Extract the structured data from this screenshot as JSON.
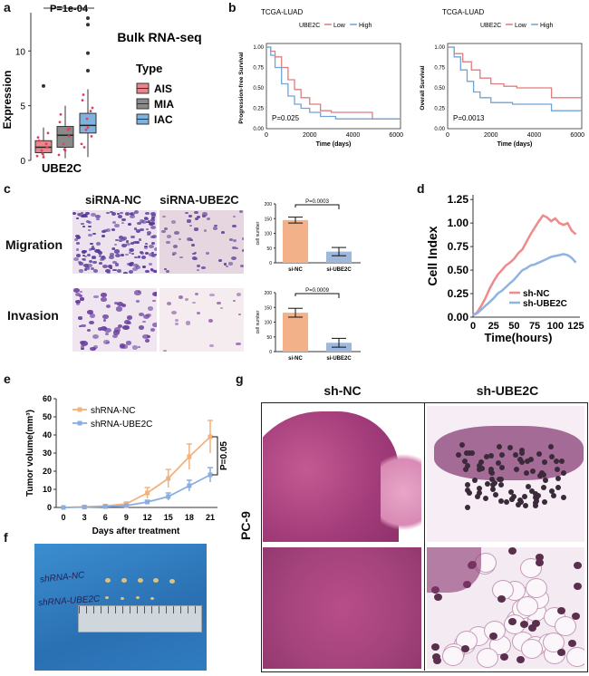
{
  "panel_letters": {
    "a": "a",
    "b": "b",
    "c": "c",
    "d": "d",
    "e": "e",
    "f": "f",
    "g": "g"
  },
  "panel_a": {
    "pvalue": "P=1e-04",
    "ylabel": "Expression",
    "yticks": [
      "0",
      "5",
      "10"
    ],
    "xlabel": "UBE2C",
    "title": "Bulk RNA-seq",
    "legend_title": "Type",
    "legend": [
      {
        "label": "AIS",
        "color": "#e8868c"
      },
      {
        "label": "MIA",
        "color": "#8a8a8a"
      },
      {
        "label": "IAC",
        "color": "#7fb2de"
      }
    ],
    "chart_data": {
      "type": "box",
      "categories": [
        "AIS",
        "MIA",
        "IAC"
      ],
      "series": [
        {
          "name": "AIS",
          "q1": 0.7,
          "median": 1.2,
          "q3": 1.8,
          "whisker_low": 0.2,
          "whisker_high": 3.0,
          "outliers": [
            6.8
          ]
        },
        {
          "name": "MIA",
          "q1": 1.2,
          "median": 2.3,
          "q3": 3.1,
          "whisker_low": 0.2,
          "whisker_high": 5.0,
          "outliers": []
        },
        {
          "name": "IAC",
          "q1": 2.5,
          "median": 3.2,
          "q3": 4.3,
          "whisker_low": 0.3,
          "whisker_high": 6.5,
          "outliers": [
            8.2,
            9.8,
            12.4,
            13.0
          ]
        }
      ],
      "ylim": [
        0,
        13.5
      ]
    }
  },
  "panel_b": {
    "km1": {
      "title": "TCGA-LUAD",
      "gene": "UBE2C",
      "legend": [
        "Low",
        "High"
      ],
      "ylabel": "Progression-free Survival",
      "xlabel": "Time (days)",
      "pvalue": "P=0.025",
      "yticks": [
        "0.00",
        "0.25",
        "0.50",
        "0.75",
        "1.00"
      ],
      "xticks": [
        "0",
        "2000",
        "4000",
        "6000"
      ],
      "chart_data": {
        "type": "line",
        "series": [
          {
            "name": "Low",
            "color": "#e07c7c",
            "points": [
              [
                0,
                1.0
              ],
              [
                200,
                0.95
              ],
              [
                400,
                0.88
              ],
              [
                700,
                0.75
              ],
              [
                1000,
                0.6
              ],
              [
                1300,
                0.48
              ],
              [
                1600,
                0.38
              ],
              [
                2000,
                0.3
              ],
              [
                2500,
                0.22
              ],
              [
                3000,
                0.2
              ],
              [
                4800,
                0.2
              ],
              [
                4900,
                0.12
              ],
              [
                6200,
                0.12
              ]
            ]
          },
          {
            "name": "High",
            "color": "#6fa4d9",
            "points": [
              [
                0,
                1.0
              ],
              [
                200,
                0.9
              ],
              [
                400,
                0.75
              ],
              [
                700,
                0.55
              ],
              [
                1000,
                0.4
              ],
              [
                1300,
                0.3
              ],
              [
                1600,
                0.25
              ],
              [
                2000,
                0.2
              ],
              [
                2500,
                0.15
              ],
              [
                3200,
                0.12
              ],
              [
                6200,
                0.12
              ]
            ]
          }
        ],
        "xlim": [
          0,
          6200
        ],
        "ylim": [
          0,
          1
        ]
      }
    },
    "km2": {
      "title": "TCGA-LUAD",
      "gene": "UBE2C",
      "legend": [
        "Low",
        "High"
      ],
      "ylabel": "Overall Survival",
      "xlabel": "Time (days)",
      "pvalue": "P=0.0013",
      "yticks": [
        "0.00",
        "0.25",
        "0.50",
        "0.75",
        "1.00"
      ],
      "xticks": [
        "0",
        "2000",
        "4000",
        "6000"
      ],
      "chart_data": {
        "type": "line",
        "series": [
          {
            "name": "Low",
            "color": "#e07c7c",
            "points": [
              [
                0,
                1.0
              ],
              [
                300,
                0.92
              ],
              [
                700,
                0.82
              ],
              [
                1100,
                0.72
              ],
              [
                1500,
                0.62
              ],
              [
                2000,
                0.55
              ],
              [
                2600,
                0.52
              ],
              [
                3200,
                0.5
              ],
              [
                4600,
                0.5
              ],
              [
                4800,
                0.38
              ],
              [
                6200,
                0.38
              ]
            ]
          },
          {
            "name": "High",
            "color": "#6fa4d9",
            "points": [
              [
                0,
                1.0
              ],
              [
                300,
                0.88
              ],
              [
                600,
                0.72
              ],
              [
                900,
                0.58
              ],
              [
                1200,
                0.45
              ],
              [
                1500,
                0.38
              ],
              [
                2000,
                0.32
              ],
              [
                3000,
                0.3
              ],
              [
                4600,
                0.3
              ],
              [
                4800,
                0.22
              ],
              [
                6200,
                0.22
              ]
            ]
          }
        ],
        "xlim": [
          0,
          6200
        ],
        "ylim": [
          0,
          1
        ]
      }
    }
  },
  "panel_c": {
    "col_headers": [
      "siRNA-NC",
      "siRNA-UBE2C"
    ],
    "row_labels": [
      "Migration",
      "Invasion"
    ],
    "bar1": {
      "pvalue": "P=0.0003",
      "ylabel": "cell number",
      "yticks": [
        "0",
        "50",
        "100",
        "150",
        "200"
      ],
      "chart_data": {
        "type": "bar",
        "categories": [
          "si-NC",
          "si-UBE2C"
        ],
        "values": [
          145,
          38
        ],
        "errors": [
          10,
          14
        ],
        "colors": [
          "#f2b189",
          "#9db7dd"
        ],
        "ylim": [
          0,
          200
        ]
      }
    },
    "bar2": {
      "pvalue": "P=0.0009",
      "ylabel": "cell number",
      "yticks": [
        "0",
        "50",
        "100",
        "150",
        "200"
      ],
      "chart_data": {
        "type": "bar",
        "categories": [
          "si-NC",
          "si-UBE2C"
        ],
        "values": [
          132,
          30
        ],
        "errors": [
          15,
          15
        ],
        "colors": [
          "#f2b189",
          "#9db7dd"
        ],
        "ylim": [
          0,
          200
        ]
      }
    }
  },
  "panel_d": {
    "ylabel": "Cell Index",
    "xlabel": "Time(hours)",
    "yticks": [
      "0.00",
      "0.25",
      "0.50",
      "0.75",
      "1.00",
      "1.25"
    ],
    "xticks": [
      "0",
      "25",
      "50",
      "75",
      "100",
      "125"
    ],
    "legend": [
      {
        "label": "sh-NC",
        "color": "#ef8a8a"
      },
      {
        "label": "sh-UBE2C",
        "color": "#8fb3e3"
      }
    ],
    "chart_data": {
      "type": "line",
      "xlim": [
        0,
        130
      ],
      "ylim": [
        0,
        1.3
      ],
      "series": [
        {
          "name": "sh-NC",
          "color": "#ef8a8a",
          "points": [
            [
              0,
              0.02
            ],
            [
              5,
              0.05
            ],
            [
              10,
              0.12
            ],
            [
              15,
              0.2
            ],
            [
              20,
              0.3
            ],
            [
              25,
              0.38
            ],
            [
              30,
              0.45
            ],
            [
              35,
              0.5
            ],
            [
              40,
              0.55
            ],
            [
              45,
              0.58
            ],
            [
              50,
              0.62
            ],
            [
              55,
              0.68
            ],
            [
              60,
              0.72
            ],
            [
              65,
              0.8
            ],
            [
              70,
              0.88
            ],
            [
              75,
              0.95
            ],
            [
              80,
              1.02
            ],
            [
              85,
              1.08
            ],
            [
              90,
              1.06
            ],
            [
              95,
              1.02
            ],
            [
              100,
              1.05
            ],
            [
              105,
              1.0
            ],
            [
              110,
              0.98
            ],
            [
              115,
              1.0
            ],
            [
              120,
              0.92
            ],
            [
              125,
              0.88
            ]
          ]
        },
        {
          "name": "sh-UBE2C",
          "color": "#8fb3e3",
          "points": [
            [
              0,
              0.02
            ],
            [
              5,
              0.04
            ],
            [
              10,
              0.08
            ],
            [
              15,
              0.12
            ],
            [
              20,
              0.16
            ],
            [
              25,
              0.2
            ],
            [
              30,
              0.25
            ],
            [
              35,
              0.28
            ],
            [
              40,
              0.32
            ],
            [
              45,
              0.36
            ],
            [
              50,
              0.4
            ],
            [
              55,
              0.45
            ],
            [
              60,
              0.5
            ],
            [
              65,
              0.52
            ],
            [
              70,
              0.55
            ],
            [
              75,
              0.56
            ],
            [
              80,
              0.58
            ],
            [
              85,
              0.6
            ],
            [
              90,
              0.62
            ],
            [
              95,
              0.64
            ],
            [
              100,
              0.65
            ],
            [
              105,
              0.66
            ],
            [
              110,
              0.67
            ],
            [
              115,
              0.66
            ],
            [
              120,
              0.63
            ],
            [
              125,
              0.58
            ]
          ]
        }
      ]
    }
  },
  "panel_e": {
    "ylabel": "Tumor volume(mm³)",
    "xlabel": "Days after treatment",
    "yticks": [
      "0",
      "10",
      "20",
      "30",
      "40",
      "50",
      "60"
    ],
    "xticks": [
      "0",
      "3",
      "6",
      "9",
      "12",
      "15",
      "18",
      "21"
    ],
    "pvalue": "P=0.05",
    "legend": [
      {
        "label": "shRNA-NC",
        "color": "#f2b27e"
      },
      {
        "label": "shRNA-UBE2C",
        "color": "#8aaee0"
      }
    ],
    "chart_data": {
      "type": "line",
      "xlim": [
        0,
        21
      ],
      "ylim": [
        0,
        60
      ],
      "series": [
        {
          "name": "shRNA-NC",
          "color": "#f2b27e",
          "x": [
            0,
            3,
            6,
            9,
            12,
            15,
            18,
            21
          ],
          "y": [
            0,
            0.3,
            0.8,
            2,
            8,
            16,
            28,
            39
          ],
          "err": [
            0,
            0.2,
            0.5,
            1,
            3,
            5,
            7,
            9
          ]
        },
        {
          "name": "shRNA-UBE2C",
          "color": "#8aaee0",
          "x": [
            0,
            3,
            6,
            9,
            12,
            15,
            18,
            21
          ],
          "y": [
            0,
            0.2,
            0.5,
            1,
            3,
            6,
            12,
            18
          ],
          "err": [
            0,
            0.1,
            0.3,
            0.5,
            1,
            2,
            3,
            4
          ]
        }
      ]
    }
  },
  "panel_f": {
    "label_nc": "shRNA-NC",
    "label_ube": "shRNA-UBE2C"
  },
  "panel_g": {
    "col_headers": [
      "sh-NC",
      "sh-UBE2C"
    ],
    "row_label": "PC-9"
  }
}
